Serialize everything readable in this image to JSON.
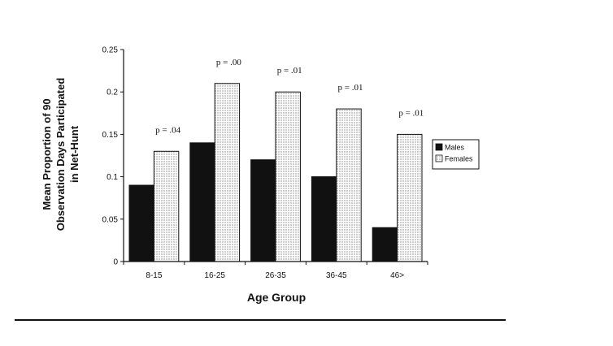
{
  "chart_data": {
    "type": "bar",
    "categories": [
      "8-15",
      "16-25",
      "26-35",
      "36-45",
      "46>"
    ],
    "series": [
      {
        "name": "Males",
        "values": [
          0.09,
          0.14,
          0.12,
          0.1,
          0.04
        ],
        "color": "#111111",
        "pattern": "solid"
      },
      {
        "name": "Females",
        "values": [
          0.13,
          0.21,
          0.2,
          0.18,
          0.15
        ],
        "color": "#ffffff",
        "pattern": "dotted"
      }
    ],
    "annotations": [
      "p = .04",
      "p = .00",
      "p = .01",
      "p = .01",
      "p = .01"
    ],
    "yticks": [
      "0",
      "0.05",
      "0.1",
      "0.15",
      "0.2",
      "0.25"
    ],
    "ylim": [
      0,
      0.25
    ],
    "xlabel": "Age Group",
    "ylabel_lines": [
      "Mean Proportion of 90",
      "Observation Days Participated",
      "in Net-Hunt"
    ],
    "legend_position": "right",
    "grid": false
  }
}
